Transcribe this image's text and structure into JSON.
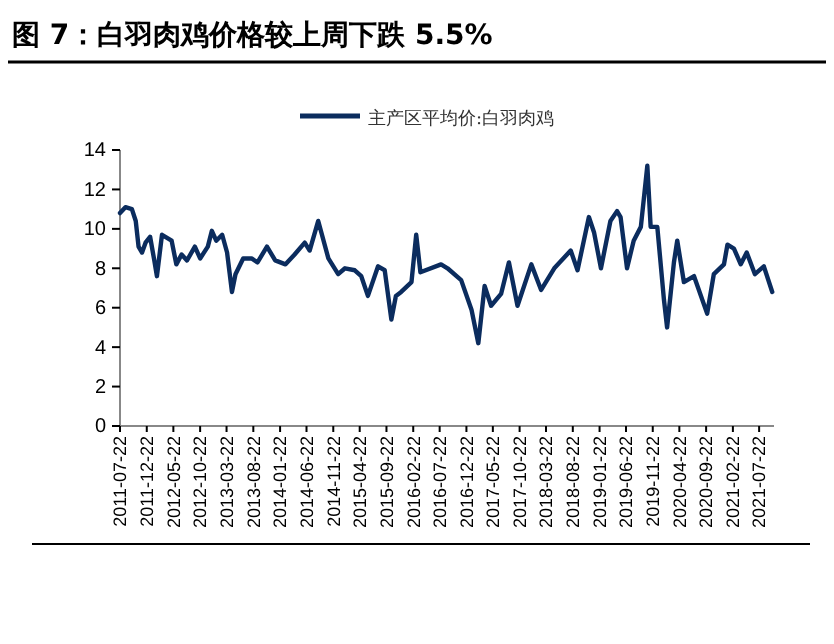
{
  "chart_data": {
    "type": "line",
    "title": "图 7：白羽肉鸡价格较上周下跌 5.5%",
    "x": [
      "2011-07-22",
      "2011-08-22",
      "2011-09-28",
      "2011-10-20",
      "2011-11-05",
      "2011-11-25",
      "2011-12-15",
      "2012-01-10",
      "2012-02-03",
      "2012-02-18",
      "2012-03-18",
      "2012-05-12",
      "2012-06-08",
      "2012-07-08",
      "2012-08-08",
      "2012-09-22",
      "2012-10-22",
      "2012-12-05",
      "2012-12-28",
      "2013-01-22",
      "2013-02-25",
      "2013-03-25",
      "2013-04-22",
      "2013-05-12",
      "2013-06-25",
      "2013-08-12",
      "2013-09-15",
      "2013-11-08",
      "2013-12-25",
      "2014-02-22",
      "2014-04-15",
      "2014-06-12",
      "2014-07-10",
      "2014-08-28",
      "2014-10-25",
      "2014-12-20",
      "2015-01-28",
      "2015-03-25",
      "2015-05-01",
      "2015-06-08",
      "2015-08-05",
      "2015-09-12",
      "2015-10-20",
      "2015-11-15",
      "2015-12-15",
      "2016-02-12",
      "2016-03-10",
      "2016-04-03",
      "2016-07-30",
      "2016-09-05",
      "2016-11-22",
      "2017-01-20",
      "2017-02-28",
      "2017-04-05",
      "2017-05-12",
      "2017-07-08",
      "2017-08-22",
      "2017-10-10",
      "2017-12-28",
      "2018-02-22",
      "2018-05-08",
      "2018-08-10",
      "2018-09-18",
      "2018-11-22",
      "2018-12-22",
      "2019-01-30",
      "2019-03-25",
      "2019-05-02",
      "2019-05-22",
      "2019-06-28",
      "2019-08-05",
      "2019-09-15",
      "2019-10-22",
      "2019-11-10",
      "2019-12-18",
      "2020-01-25",
      "2020-02-12",
      "2020-03-22",
      "2020-04-10",
      "2020-05-18",
      "2020-07-15",
      "2020-09-28",
      "2020-11-05",
      "2021-01-02",
      "2021-01-22",
      "2021-02-28",
      "2021-04-08",
      "2021-05-12",
      "2021-06-28",
      "2021-08-18",
      "2021-10-05"
    ],
    "series": [
      {
        "name": "主产区平均价:白羽肉鸡",
        "color": "#0b2c5e",
        "values": [
          10.8,
          11.1,
          11.0,
          10.4,
          9.1,
          8.8,
          9.3,
          9.6,
          8.4,
          7.6,
          9.7,
          9.4,
          8.2,
          8.7,
          8.4,
          9.1,
          8.5,
          9.1,
          9.9,
          9.4,
          9.7,
          8.8,
          6.8,
          7.7,
          8.5,
          8.5,
          8.3,
          9.1,
          8.4,
          8.2,
          8.7,
          9.3,
          8.9,
          10.4,
          8.5,
          7.7,
          8.0,
          7.9,
          7.6,
          6.6,
          8.1,
          7.9,
          5.4,
          6.6,
          6.8,
          7.3,
          9.7,
          7.8,
          8.2,
          8.0,
          7.4,
          5.9,
          4.2,
          7.1,
          6.1,
          6.7,
          8.3,
          6.1,
          8.2,
          6.9,
          8.0,
          8.9,
          7.9,
          10.6,
          9.8,
          8.0,
          10.4,
          10.9,
          10.6,
          8.0,
          9.4,
          10.1,
          13.2,
          10.1,
          10.1,
          6.4,
          5.0,
          8.3,
          9.4,
          7.3,
          7.6,
          5.7,
          7.7,
          8.2,
          9.2,
          9.0,
          8.2,
          8.8,
          7.7,
          8.1,
          6.8
        ]
      }
    ],
    "xlim": [
      "2011-07-22",
      "2021-10-15"
    ],
    "xticks": [
      "2011-07-22",
      "2011-12-22",
      "2012-05-22",
      "2012-10-22",
      "2013-03-22",
      "2013-08-22",
      "2014-01-22",
      "2014-06-22",
      "2014-11-22",
      "2015-04-22",
      "2015-09-22",
      "2016-02-22",
      "2016-07-22",
      "2016-12-22",
      "2017-05-22",
      "2017-10-22",
      "2018-03-22",
      "2018-08-22",
      "2019-01-22",
      "2019-06-22",
      "2019-11-22",
      "2020-04-22",
      "2020-09-22",
      "2021-02-22",
      "2021-07-22"
    ],
    "ylim": [
      0,
      14
    ],
    "yticks": [
      0,
      2,
      4,
      6,
      8,
      10,
      12,
      14
    ],
    "legend": "top",
    "grid": false,
    "marker": "none",
    "line_style": "solid"
  }
}
